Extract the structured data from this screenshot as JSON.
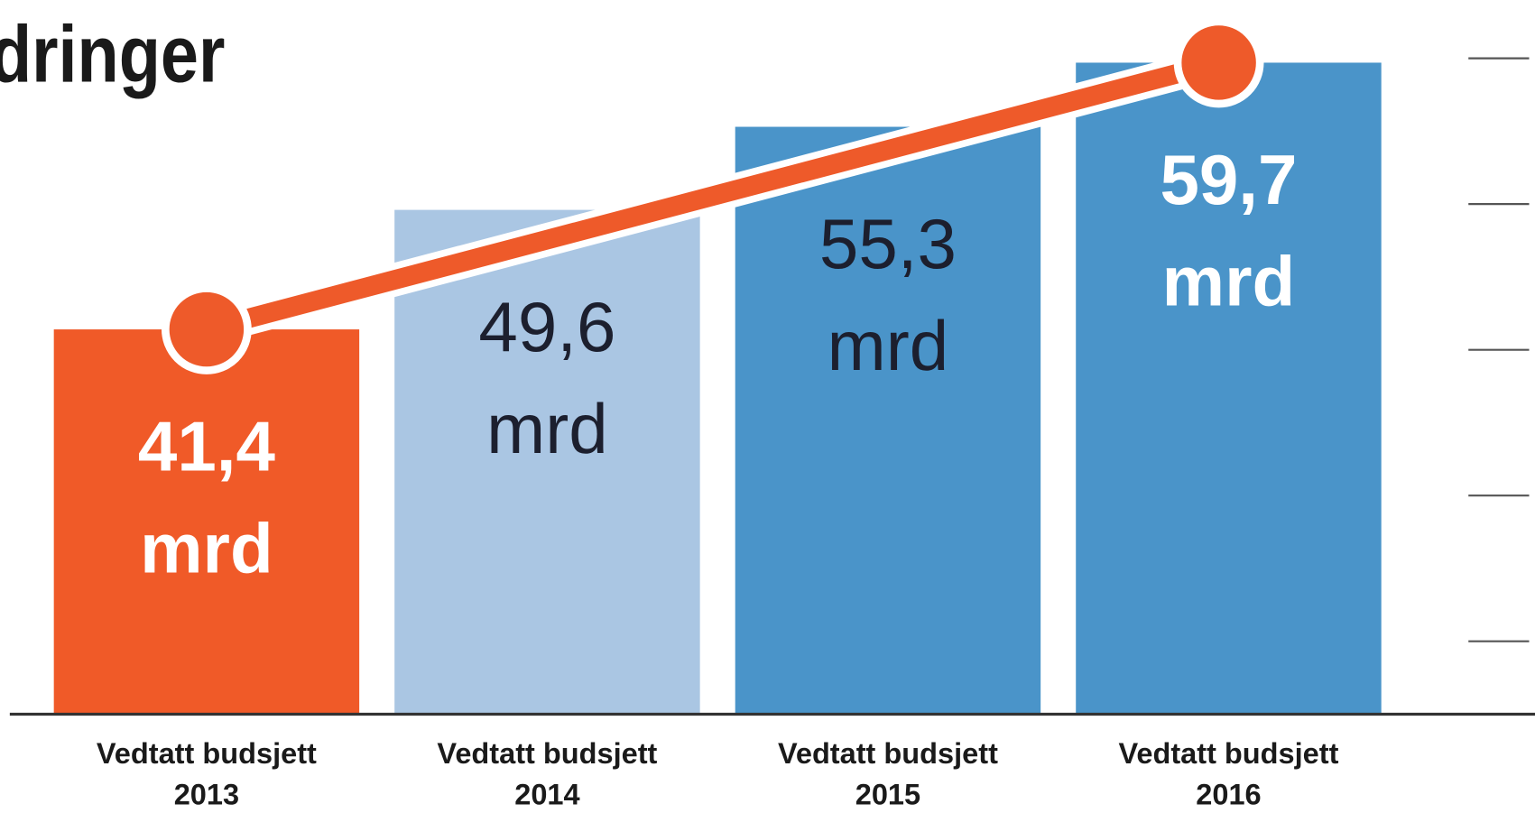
{
  "chart_data": {
    "type": "bar",
    "title": "dringer",
    "categories": [
      "Vedtatt budsjett 2013",
      "Vedtatt budsjett 2014",
      "Vedtatt budsjett 2015",
      "Vedtatt budsjett 2016"
    ],
    "values": [
      41.4,
      49.6,
      55.3,
      59.7
    ],
    "value_labels": [
      "41,4 mrd",
      "49,6 mrd",
      "55,3 mrd",
      "59,7 mrd"
    ],
    "colors": [
      "#f05a28",
      "#aac6e3",
      "#4a94c9",
      "#4a94c9"
    ],
    "label_colors": [
      "#ffffff",
      "#1c1f2e",
      "#1c1f2e",
      "#ffffff"
    ],
    "trend_line": {
      "color": "#ee5a2a"
    },
    "ylim": [
      15,
      64
    ],
    "yticks": [
      20,
      30,
      40,
      50,
      60
    ]
  }
}
